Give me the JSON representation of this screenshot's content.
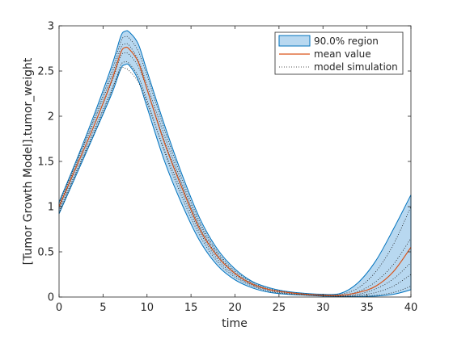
{
  "chart_data": {
    "type": "line",
    "title": "",
    "xlabel": "time",
    "ylabel": "[Tumor Growth Model].tumor_weight",
    "xlim": [
      0,
      40
    ],
    "ylim": [
      0,
      3
    ],
    "xticks": [
      0,
      5,
      10,
      15,
      20,
      25,
      30,
      35,
      40
    ],
    "yticks": [
      0,
      0.5,
      1,
      1.5,
      2,
      2.5,
      3
    ],
    "xtick_labels": [
      "0",
      "5",
      "10",
      "15",
      "20",
      "25",
      "30",
      "35",
      "40"
    ],
    "ytick_labels": [
      "0",
      "0.5",
      "1",
      "1.5",
      "2",
      "2.5",
      "3"
    ],
    "grid": false,
    "legend_position": "top-right",
    "legend": [
      {
        "label": "90.0% region",
        "kind": "band"
      },
      {
        "label": "mean value",
        "kind": "line"
      },
      {
        "label": "model simulation",
        "kind": "dotted"
      }
    ],
    "colors": {
      "band_fill": "#b8d8f0",
      "band_edge": "#0072bd",
      "mean": "#d95319",
      "simulation": "#1a1a1a"
    },
    "x": [
      0,
      2,
      4,
      6,
      7,
      7.5,
      8,
      9,
      10,
      12,
      14,
      16,
      18,
      20,
      22,
      24,
      26,
      28,
      30,
      32,
      34,
      36,
      38,
      40
    ],
    "series": [
      {
        "name": "mean value",
        "role": "mean",
        "values": [
          1.0,
          1.45,
          1.9,
          2.4,
          2.7,
          2.76,
          2.74,
          2.6,
          2.3,
          1.7,
          1.2,
          0.75,
          0.45,
          0.26,
          0.14,
          0.08,
          0.05,
          0.03,
          0.02,
          0.02,
          0.05,
          0.12,
          0.28,
          0.55
        ]
      },
      {
        "name": "90.0% region upper",
        "role": "band_upper",
        "values": [
          1.05,
          1.52,
          2.02,
          2.56,
          2.88,
          2.94,
          2.93,
          2.8,
          2.5,
          1.9,
          1.35,
          0.87,
          0.53,
          0.31,
          0.17,
          0.1,
          0.06,
          0.04,
          0.03,
          0.04,
          0.16,
          0.4,
          0.75,
          1.13
        ]
      },
      {
        "name": "90.0% region lower",
        "role": "band_lower",
        "values": [
          0.92,
          1.36,
          1.8,
          2.25,
          2.52,
          2.57,
          2.56,
          2.4,
          2.1,
          1.5,
          1.02,
          0.62,
          0.35,
          0.19,
          0.1,
          0.05,
          0.03,
          0.02,
          0.01,
          0.005,
          0.005,
          0.01,
          0.03,
          0.08
        ]
      },
      {
        "name": "model simulation",
        "role": "sim",
        "values": [
          0.95,
          1.4,
          1.85,
          2.3,
          2.52,
          2.53,
          2.5,
          2.38,
          2.15,
          1.62,
          1.15,
          0.72,
          0.42,
          0.24,
          0.13,
          0.07,
          0.04,
          0.025,
          0.015,
          0.01,
          0.02,
          0.05,
          0.12,
          0.25
        ]
      },
      {
        "name": "model simulation",
        "role": "sim",
        "values": [
          1.02,
          1.48,
          1.95,
          2.45,
          2.75,
          2.8,
          2.78,
          2.62,
          2.35,
          1.78,
          1.25,
          0.8,
          0.48,
          0.27,
          0.15,
          0.08,
          0.05,
          0.03,
          0.02,
          0.02,
          0.06,
          0.17,
          0.36,
          0.65
        ]
      },
      {
        "name": "model simulation",
        "role": "sim",
        "values": [
          0.98,
          1.44,
          1.9,
          2.38,
          2.66,
          2.7,
          2.68,
          2.55,
          2.3,
          1.72,
          1.22,
          0.77,
          0.46,
          0.26,
          0.14,
          0.08,
          0.05,
          0.03,
          0.02,
          0.01,
          0.03,
          0.09,
          0.2,
          0.38
        ]
      },
      {
        "name": "model simulation",
        "role": "sim",
        "values": [
          1.04,
          1.5,
          1.98,
          2.5,
          2.82,
          2.88,
          2.86,
          2.72,
          2.45,
          1.85,
          1.3,
          0.83,
          0.5,
          0.29,
          0.16,
          0.09,
          0.055,
          0.035,
          0.025,
          0.03,
          0.1,
          0.28,
          0.58,
          1.0
        ]
      },
      {
        "name": "model simulation",
        "role": "sim",
        "values": [
          0.93,
          1.38,
          1.82,
          2.28,
          2.56,
          2.6,
          2.58,
          2.44,
          2.18,
          1.6,
          1.1,
          0.68,
          0.39,
          0.22,
          0.12,
          0.06,
          0.035,
          0.02,
          0.012,
          0.006,
          0.01,
          0.02,
          0.05,
          0.12
        ]
      }
    ]
  }
}
